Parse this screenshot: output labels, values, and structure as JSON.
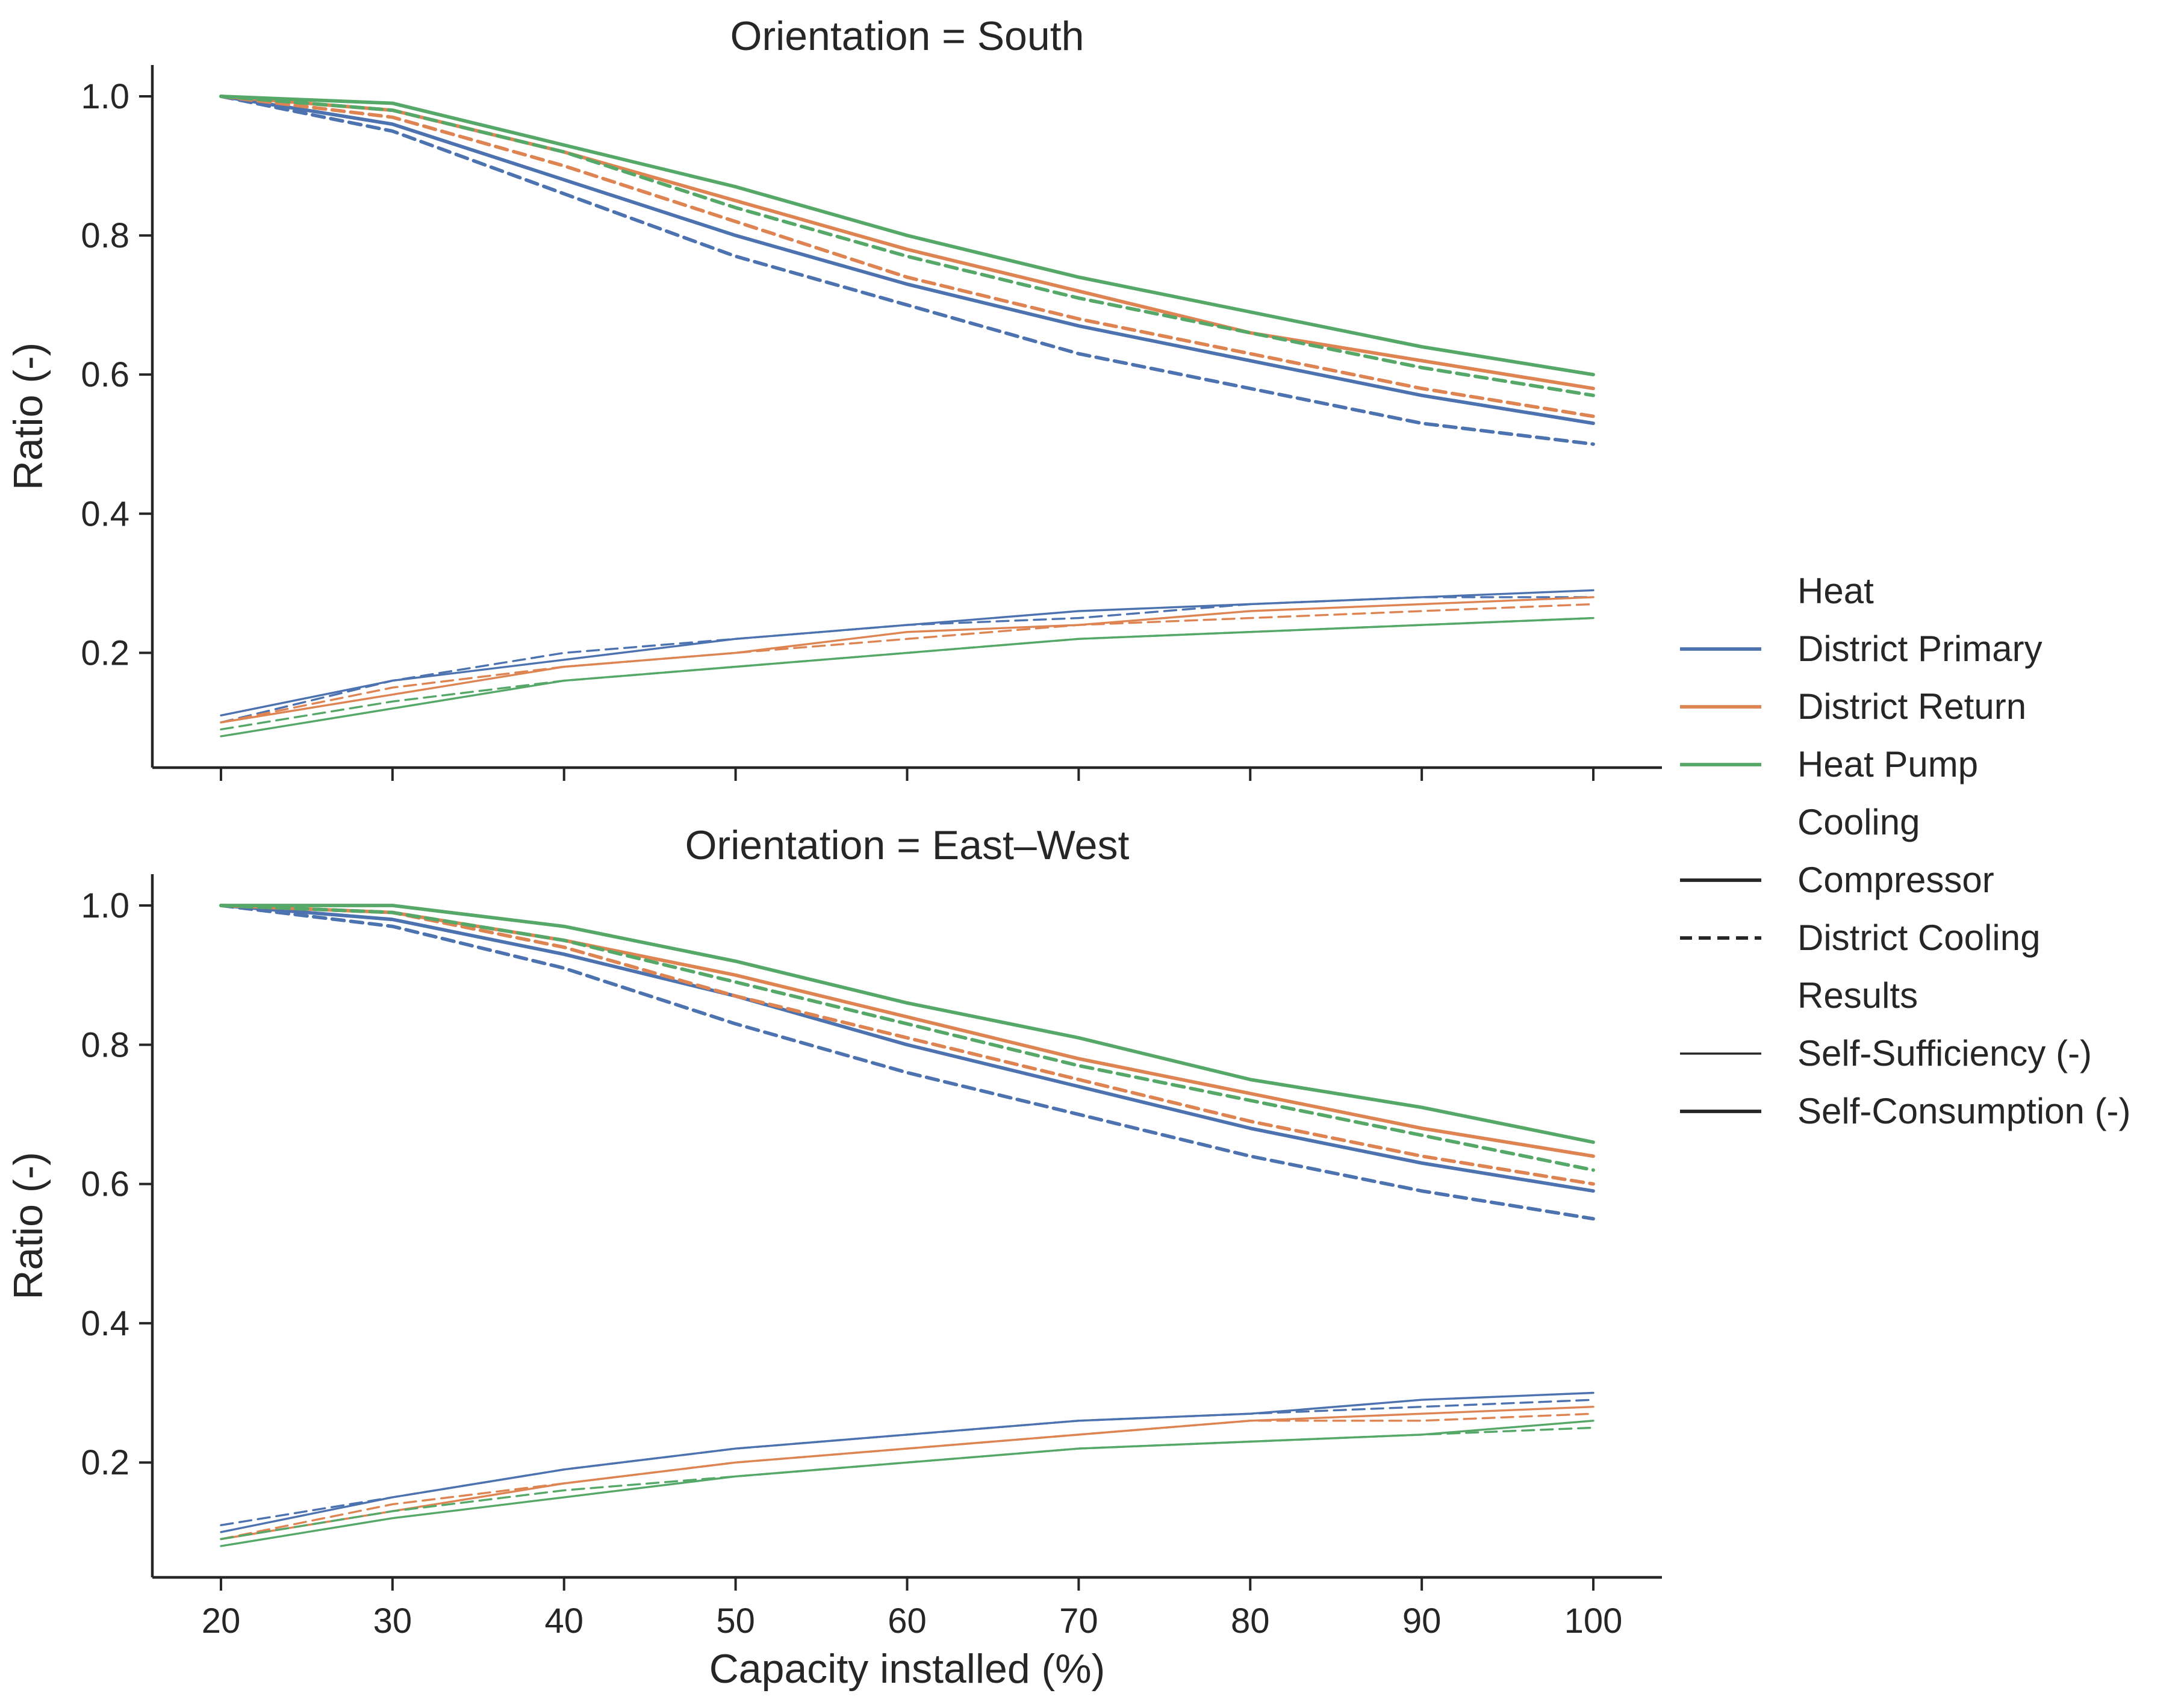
{
  "chart_data": {
    "type": "line",
    "xlabel": "Capacity installed (%)",
    "ylabel": "Ratio (-)",
    "x": [
      20,
      30,
      40,
      50,
      60,
      70,
      80,
      90,
      100
    ],
    "xlim": [
      16,
      104
    ],
    "ylim": [
      0.035,
      1.045
    ],
    "yticks": [
      0.2,
      0.4,
      0.6,
      0.8,
      1.0
    ],
    "ytick_labels": [
      "0.2",
      "0.4",
      "0.6",
      "0.8",
      "1.0"
    ],
    "xticks": [
      20,
      30,
      40,
      50,
      60,
      70,
      80,
      90,
      100
    ],
    "xtick_labels": [
      "20",
      "30",
      "40",
      "50",
      "60",
      "70",
      "80",
      "90",
      "100"
    ],
    "colors": {
      "District Primary": "#4c72b0",
      "District Return": "#dd8452",
      "Heat Pump": "#55a868"
    },
    "legend": {
      "position": "right",
      "sections": [
        {
          "title": "Heat",
          "entries": [
            {
              "label": "District Primary",
              "style": "solid",
              "color": "#4c72b0"
            },
            {
              "label": "District Return",
              "style": "solid",
              "color": "#dd8452"
            },
            {
              "label": "Heat Pump",
              "style": "solid",
              "color": "#55a868"
            }
          ]
        },
        {
          "title": "Cooling",
          "entries": [
            {
              "label": "Compressor",
              "style": "solid",
              "color": "#262626"
            },
            {
              "label": "District Cooling",
              "style": "dashed",
              "color": "#262626"
            }
          ]
        },
        {
          "title": "Results",
          "entries": [
            {
              "label": "Self-Sufficiency (-)",
              "style": "thin",
              "color": "#262626"
            },
            {
              "label": "Self-Consumption (-)",
              "style": "thick",
              "color": "#262626"
            }
          ]
        }
      ]
    },
    "panels": [
      {
        "title": "Orientation = South",
        "series": [
          {
            "heat": "District Primary",
            "cooling": "Compressor",
            "result": "Self-Consumption (-)",
            "values": [
              1.0,
              0.96,
              0.88,
              0.8,
              0.73,
              0.67,
              0.62,
              0.57,
              0.53
            ]
          },
          {
            "heat": "District Primary",
            "cooling": "District Cooling",
            "result": "Self-Consumption (-)",
            "values": [
              1.0,
              0.95,
              0.86,
              0.77,
              0.7,
              0.63,
              0.58,
              0.53,
              0.5
            ]
          },
          {
            "heat": "District Return",
            "cooling": "Compressor",
            "result": "Self-Consumption (-)",
            "values": [
              1.0,
              0.98,
              0.92,
              0.85,
              0.78,
              0.72,
              0.66,
              0.62,
              0.58
            ]
          },
          {
            "heat": "District Return",
            "cooling": "District Cooling",
            "result": "Self-Consumption (-)",
            "values": [
              1.0,
              0.97,
              0.9,
              0.82,
              0.74,
              0.68,
              0.63,
              0.58,
              0.54
            ]
          },
          {
            "heat": "Heat Pump",
            "cooling": "Compressor",
            "result": "Self-Consumption (-)",
            "values": [
              1.0,
              0.99,
              0.93,
              0.87,
              0.8,
              0.74,
              0.69,
              0.64,
              0.6
            ]
          },
          {
            "heat": "Heat Pump",
            "cooling": "District Cooling",
            "result": "Self-Consumption (-)",
            "values": [
              1.0,
              0.98,
              0.92,
              0.84,
              0.77,
              0.71,
              0.66,
              0.61,
              0.57
            ]
          },
          {
            "heat": "District Primary",
            "cooling": "Compressor",
            "result": "Self-Sufficiency (-)",
            "values": [
              0.11,
              0.16,
              0.19,
              0.22,
              0.24,
              0.26,
              0.27,
              0.28,
              0.29
            ]
          },
          {
            "heat": "District Primary",
            "cooling": "District Cooling",
            "result": "Self-Sufficiency (-)",
            "values": [
              0.1,
              0.16,
              0.2,
              0.22,
              0.24,
              0.25,
              0.27,
              0.28,
              0.28
            ]
          },
          {
            "heat": "District Return",
            "cooling": "Compressor",
            "result": "Self-Sufficiency (-)",
            "values": [
              0.1,
              0.14,
              0.18,
              0.2,
              0.23,
              0.24,
              0.26,
              0.27,
              0.28
            ]
          },
          {
            "heat": "District Return",
            "cooling": "District Cooling",
            "result": "Self-Sufficiency (-)",
            "values": [
              0.1,
              0.15,
              0.18,
              0.2,
              0.22,
              0.24,
              0.25,
              0.26,
              0.27
            ]
          },
          {
            "heat": "Heat Pump",
            "cooling": "Compressor",
            "result": "Self-Sufficiency (-)",
            "values": [
              0.08,
              0.12,
              0.16,
              0.18,
              0.2,
              0.22,
              0.23,
              0.24,
              0.25
            ]
          },
          {
            "heat": "Heat Pump",
            "cooling": "District Cooling",
            "result": "Self-Sufficiency (-)",
            "values": [
              0.09,
              0.13,
              0.16,
              0.18,
              0.2,
              0.22,
              0.23,
              0.24,
              0.25
            ]
          }
        ]
      },
      {
        "title": "Orientation = East–West",
        "series": [
          {
            "heat": "District Primary",
            "cooling": "Compressor",
            "result": "Self-Consumption (-)",
            "values": [
              1.0,
              0.98,
              0.93,
              0.87,
              0.8,
              0.74,
              0.68,
              0.63,
              0.59
            ]
          },
          {
            "heat": "District Primary",
            "cooling": "District Cooling",
            "result": "Self-Consumption (-)",
            "values": [
              1.0,
              0.97,
              0.91,
              0.83,
              0.76,
              0.7,
              0.64,
              0.59,
              0.55
            ]
          },
          {
            "heat": "District Return",
            "cooling": "Compressor",
            "result": "Self-Consumption (-)",
            "values": [
              1.0,
              0.99,
              0.95,
              0.9,
              0.84,
              0.78,
              0.73,
              0.68,
              0.64
            ]
          },
          {
            "heat": "District Return",
            "cooling": "District Cooling",
            "result": "Self-Consumption (-)",
            "values": [
              1.0,
              0.99,
              0.94,
              0.87,
              0.81,
              0.75,
              0.69,
              0.64,
              0.6
            ]
          },
          {
            "heat": "Heat Pump",
            "cooling": "Compressor",
            "result": "Self-Consumption (-)",
            "values": [
              1.0,
              1.0,
              0.97,
              0.92,
              0.86,
              0.81,
              0.75,
              0.71,
              0.66
            ]
          },
          {
            "heat": "Heat Pump",
            "cooling": "District Cooling",
            "result": "Self-Consumption (-)",
            "values": [
              1.0,
              0.99,
              0.95,
              0.89,
              0.83,
              0.77,
              0.72,
              0.67,
              0.62
            ]
          },
          {
            "heat": "District Primary",
            "cooling": "Compressor",
            "result": "Self-Sufficiency (-)",
            "values": [
              0.1,
              0.15,
              0.19,
              0.22,
              0.24,
              0.26,
              0.27,
              0.29,
              0.3
            ]
          },
          {
            "heat": "District Primary",
            "cooling": "District Cooling",
            "result": "Self-Sufficiency (-)",
            "values": [
              0.11,
              0.15,
              0.19,
              0.22,
              0.24,
              0.26,
              0.27,
              0.28,
              0.29
            ]
          },
          {
            "heat": "District Return",
            "cooling": "Compressor",
            "result": "Self-Sufficiency (-)",
            "values": [
              0.09,
              0.13,
              0.17,
              0.2,
              0.22,
              0.24,
              0.26,
              0.27,
              0.28
            ]
          },
          {
            "heat": "District Return",
            "cooling": "District Cooling",
            "result": "Self-Sufficiency (-)",
            "values": [
              0.09,
              0.14,
              0.17,
              0.2,
              0.22,
              0.24,
              0.26,
              0.26,
              0.27
            ]
          },
          {
            "heat": "Heat Pump",
            "cooling": "Compressor",
            "result": "Self-Sufficiency (-)",
            "values": [
              0.08,
              0.12,
              0.15,
              0.18,
              0.2,
              0.22,
              0.23,
              0.24,
              0.26
            ]
          },
          {
            "heat": "Heat Pump",
            "cooling": "District Cooling",
            "result": "Self-Sufficiency (-)",
            "values": [
              0.09,
              0.13,
              0.16,
              0.18,
              0.2,
              0.22,
              0.23,
              0.24,
              0.25
            ]
          }
        ]
      }
    ]
  }
}
